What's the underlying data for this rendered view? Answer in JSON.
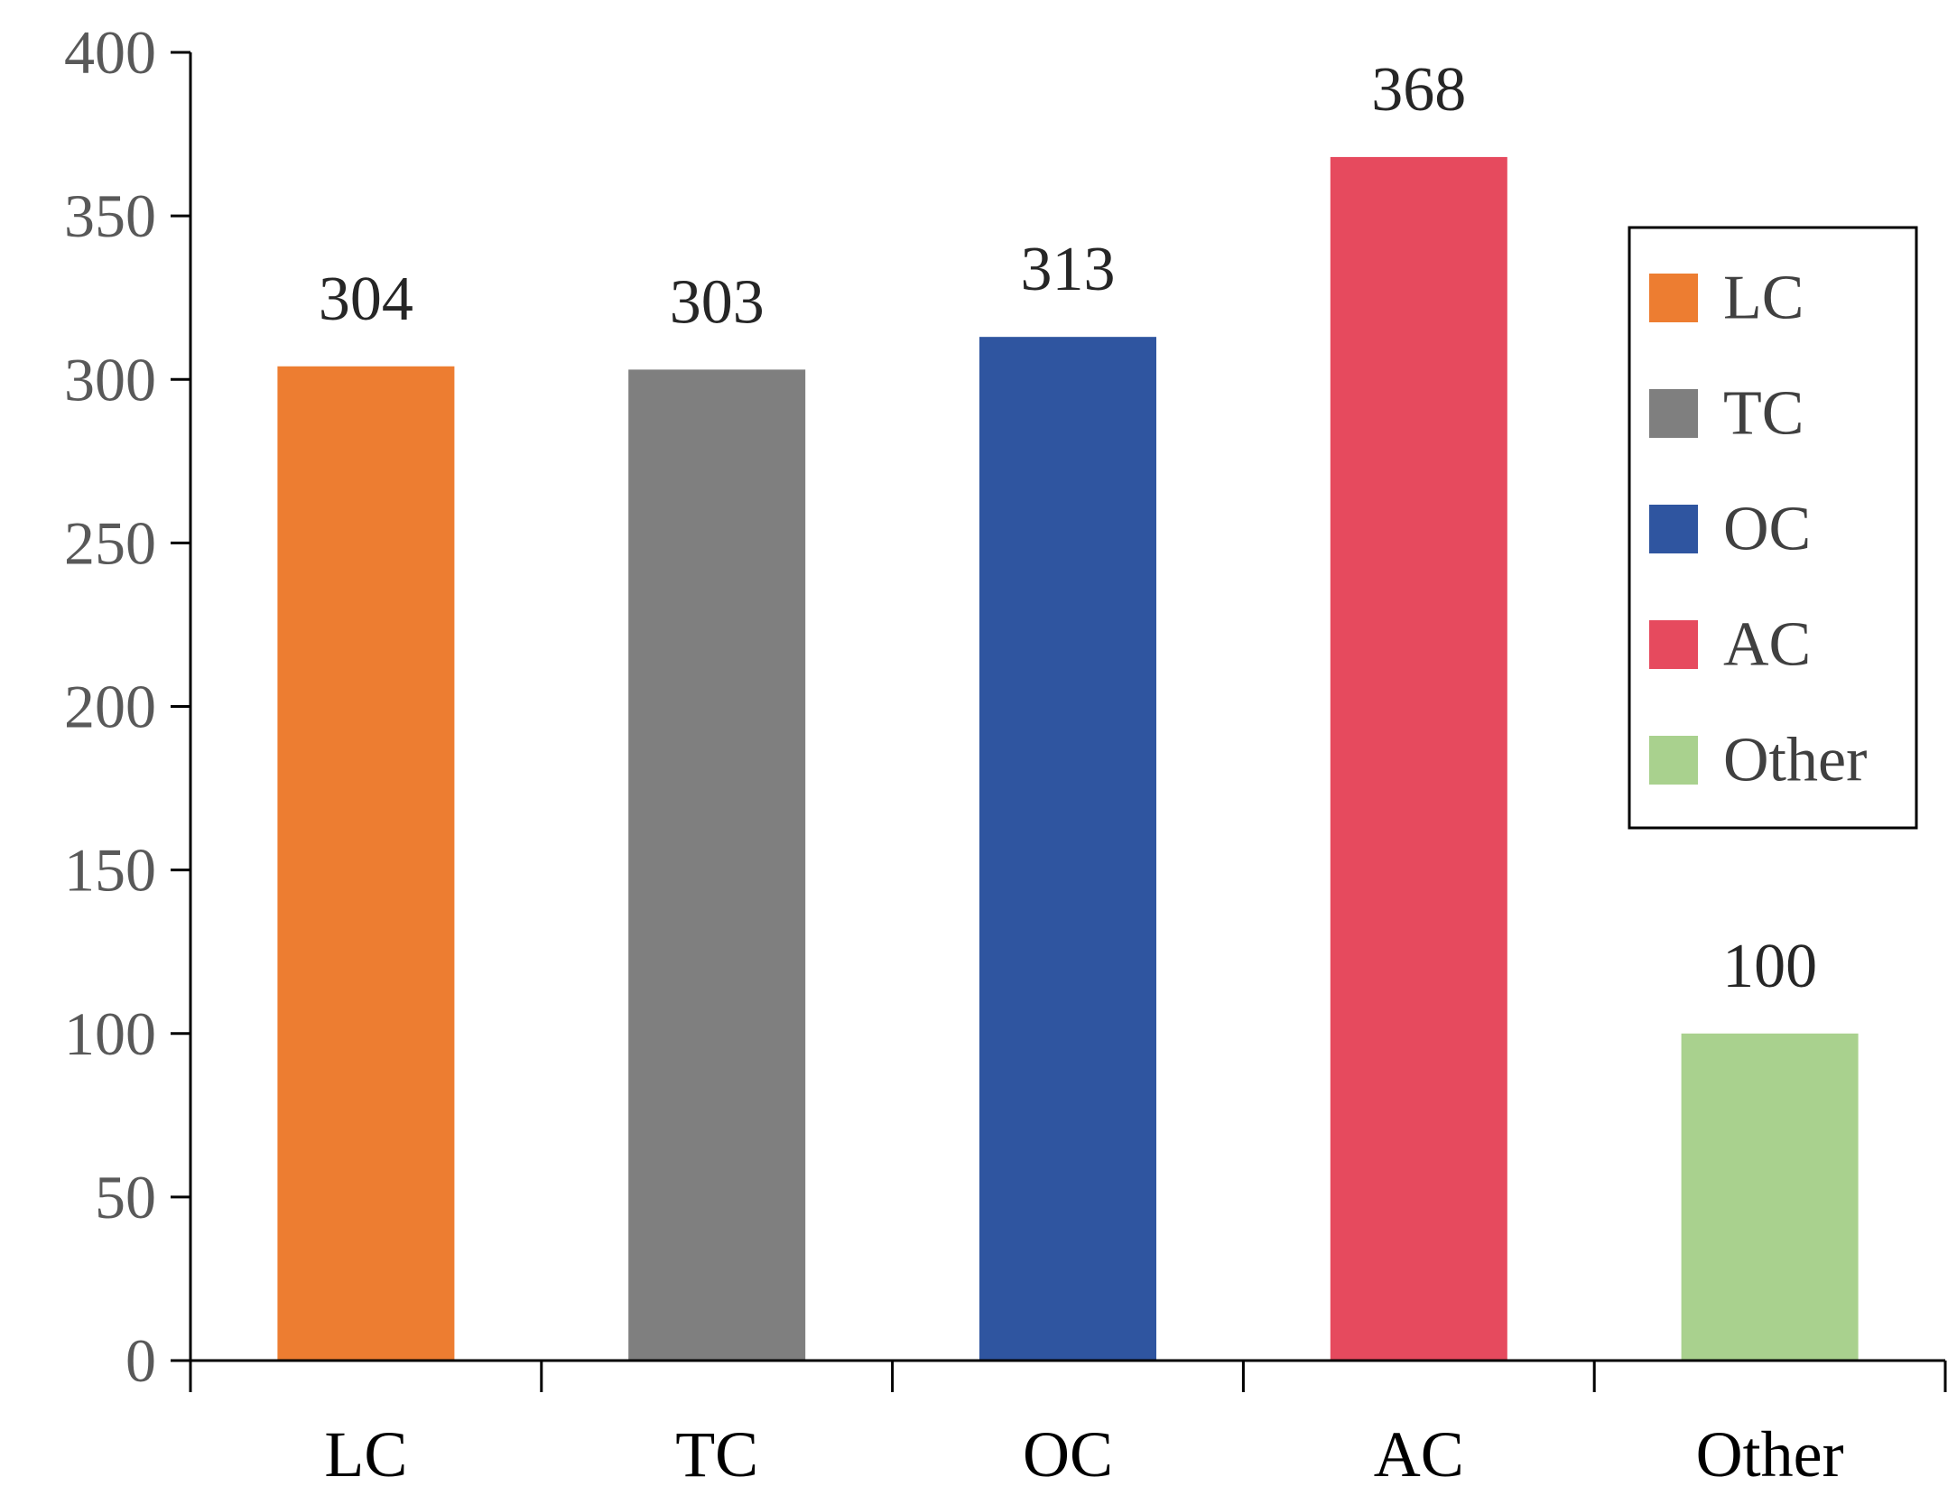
{
  "chart_data": {
    "type": "bar",
    "title": "",
    "xlabel": "",
    "ylabel": "",
    "ylim": [
      0,
      400
    ],
    "yticks": [
      0,
      50,
      100,
      150,
      200,
      250,
      300,
      350,
      400
    ],
    "ytick_labels": [
      "0",
      "50",
      "100",
      "150",
      "200",
      "250",
      "300",
      "350",
      "400"
    ],
    "categories": [
      "LC",
      "TC",
      "OC",
      "AC",
      "Other"
    ],
    "values": [
      304,
      303,
      313,
      368,
      100
    ],
    "data_labels": [
      "304",
      "303",
      "313",
      "368",
      "100"
    ],
    "colors": [
      "#ED7D31",
      "#7F7F7F",
      "#2F55A0",
      "#E64A5E",
      "#A9D18E"
    ],
    "grid": false,
    "legend": {
      "placement": "right",
      "entries": [
        "LC",
        "TC",
        "OC",
        "AC",
        "Other"
      ]
    }
  }
}
